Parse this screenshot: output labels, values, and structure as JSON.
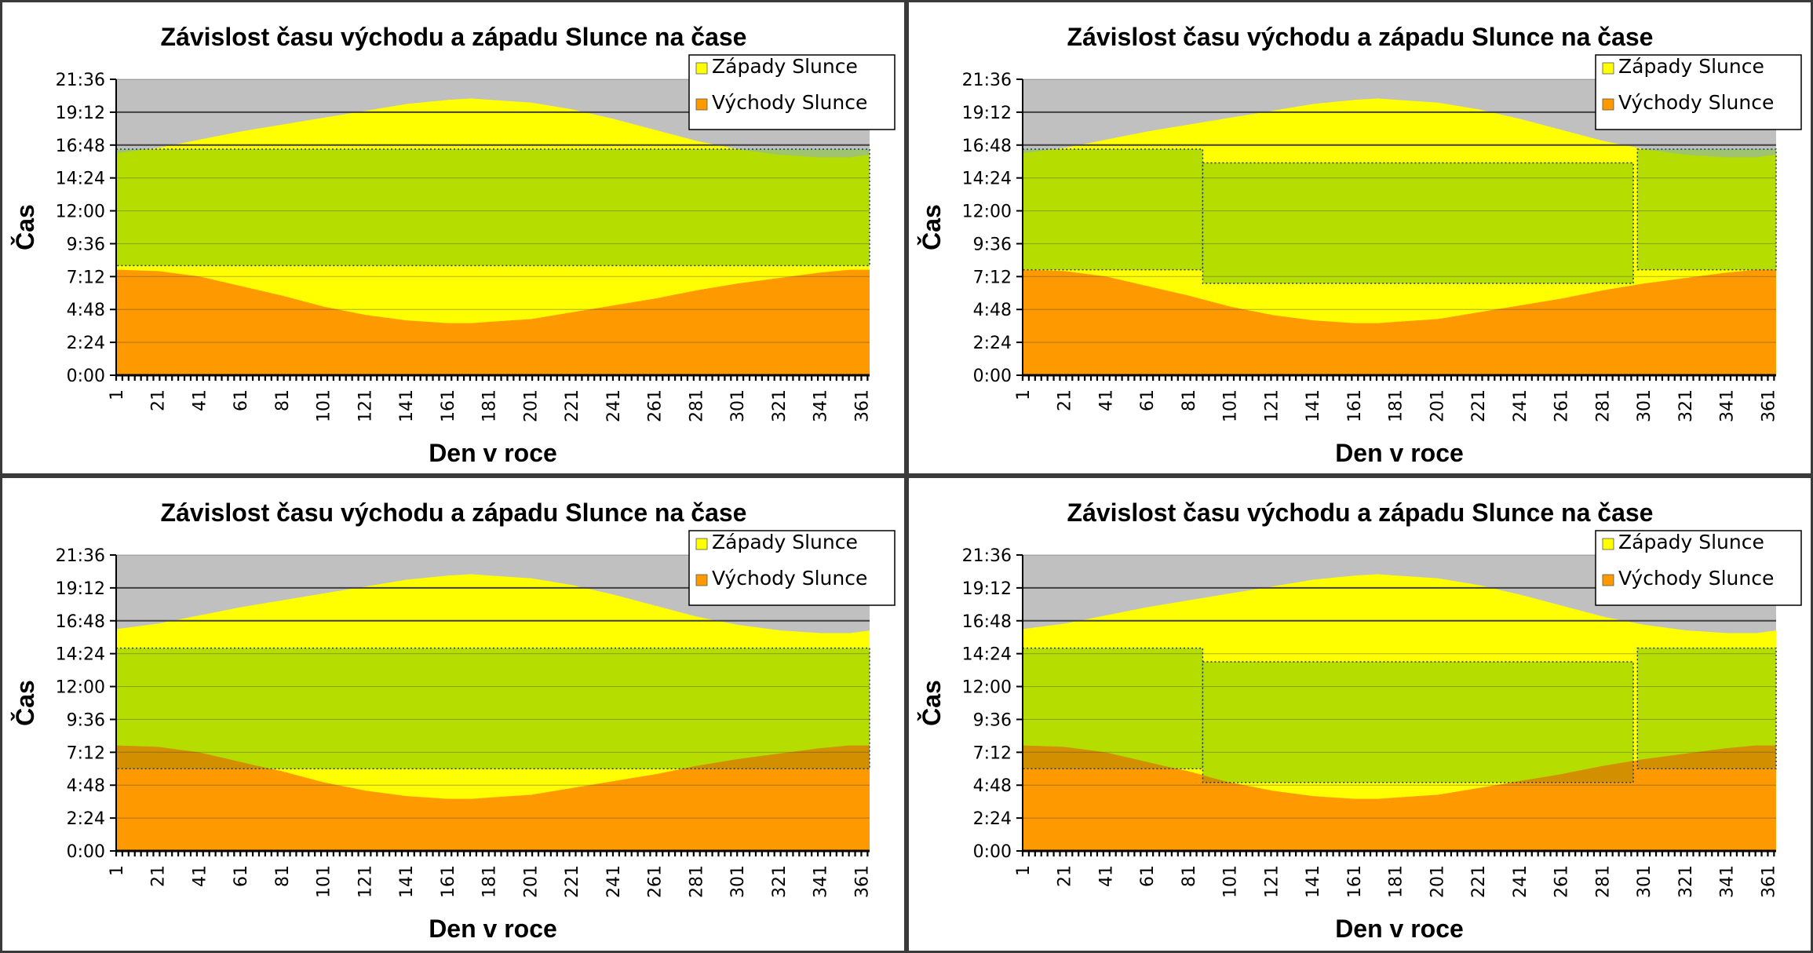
{
  "colors": {
    "night": "#c0c0c0",
    "sunset_area": "#ffff00",
    "sunrise_area": "#ff9900",
    "overlay": "#b6dd00",
    "overlay_dark": "#d28f00",
    "overlay_upper": "#9fc36f",
    "gridline": "#404040",
    "overlay_edge": "#1f3a7a"
  },
  "chart_data": [
    {
      "type": "area",
      "title": "Závislost času východu a západu Slunce na čase",
      "xlabel": "Den v roce",
      "ylabel": "Čas",
      "x_ticks": [
        "1",
        "21",
        "41",
        "61",
        "81",
        "101",
        "121",
        "141",
        "161",
        "181",
        "201",
        "221",
        "241",
        "261",
        "281",
        "301",
        "321",
        "341",
        "361"
      ],
      "y_ticks": [
        "0:00",
        "2:24",
        "4:48",
        "7:12",
        "9:36",
        "12:00",
        "14:24",
        "16:48",
        "19:12",
        "21:36"
      ],
      "ylim_hours": [
        0,
        21.6
      ],
      "xlim_days": [
        1,
        365
      ],
      "grid": "horizontal major gridlines",
      "legend_position": "top-right",
      "legend": [
        "Západy Slunce",
        "Východy Slunce"
      ],
      "series": [
        {
          "name": "Západy Slunce",
          "x": [
            1,
            21,
            41,
            61,
            81,
            101,
            121,
            141,
            161,
            172,
            181,
            201,
            221,
            241,
            261,
            281,
            301,
            321,
            341,
            355,
            365
          ],
          "y_hours": [
            16.2,
            16.6,
            17.2,
            17.8,
            18.3,
            18.8,
            19.3,
            19.8,
            20.1,
            20.2,
            20.1,
            19.9,
            19.4,
            18.7,
            17.9,
            17.1,
            16.5,
            16.1,
            15.9,
            15.9,
            16.1
          ]
        },
        {
          "name": "Východy Slunce",
          "x": [
            1,
            21,
            41,
            61,
            81,
            101,
            121,
            141,
            161,
            172,
            181,
            201,
            221,
            241,
            261,
            281,
            301,
            321,
            341,
            355,
            365
          ],
          "y_hours": [
            7.7,
            7.6,
            7.2,
            6.5,
            5.8,
            5.0,
            4.4,
            4.0,
            3.8,
            3.8,
            3.9,
            4.1,
            4.6,
            5.1,
            5.6,
            6.2,
            6.7,
            7.1,
            7.5,
            7.7,
            7.7
          ]
        }
      ],
      "overlay_periods": [
        {
          "from_day": 1,
          "to_day": 365,
          "start_hours": 8.0,
          "end_hours": 16.5
        }
      ]
    },
    {
      "type": "area",
      "title": "Závislost času východu a západu Slunce na čase",
      "xlabel": "Den v roce",
      "ylabel": "Čas",
      "x_ticks": [
        "1",
        "21",
        "41",
        "61",
        "81",
        "101",
        "121",
        "141",
        "161",
        "181",
        "201",
        "221",
        "241",
        "261",
        "281",
        "301",
        "321",
        "341",
        "361"
      ],
      "y_ticks": [
        "0:00",
        "2:24",
        "4:48",
        "7:12",
        "9:36",
        "12:00",
        "14:24",
        "16:48",
        "19:12",
        "21:36"
      ],
      "ylim_hours": [
        0,
        21.6
      ],
      "xlim_days": [
        1,
        365
      ],
      "grid": "horizontal major gridlines",
      "legend_position": "top-right",
      "legend": [
        "Západy Slunce",
        "Východy Slunce"
      ],
      "series": [
        {
          "name": "Západy Slunce",
          "x": [
            1,
            21,
            41,
            61,
            81,
            101,
            121,
            141,
            161,
            172,
            181,
            201,
            221,
            241,
            261,
            281,
            301,
            321,
            341,
            355,
            365
          ],
          "y_hours": [
            16.2,
            16.6,
            17.2,
            17.8,
            18.3,
            18.8,
            19.3,
            19.8,
            20.1,
            20.2,
            20.1,
            19.9,
            19.4,
            18.7,
            17.9,
            17.1,
            16.5,
            16.1,
            15.9,
            15.9,
            16.1
          ]
        },
        {
          "name": "Východy Slunce",
          "x": [
            1,
            21,
            41,
            61,
            81,
            101,
            121,
            141,
            161,
            172,
            181,
            201,
            221,
            241,
            261,
            281,
            301,
            321,
            341,
            355,
            365
          ],
          "y_hours": [
            7.7,
            7.6,
            7.2,
            6.5,
            5.8,
            5.0,
            4.4,
            4.0,
            3.8,
            3.8,
            3.9,
            4.1,
            4.6,
            5.1,
            5.6,
            6.2,
            6.7,
            7.1,
            7.5,
            7.7,
            7.7
          ]
        }
      ],
      "overlay_periods": [
        {
          "from_day": 1,
          "to_day": 88,
          "start_hours": 7.7,
          "end_hours": 16.5
        },
        {
          "from_day": 88,
          "to_day": 296,
          "start_hours": 6.7,
          "end_hours": 15.5
        },
        {
          "from_day": 298,
          "to_day": 365,
          "start_hours": 7.7,
          "end_hours": 16.5
        }
      ]
    },
    {
      "type": "area",
      "title": "Závislost času východu a západu Slunce na čase",
      "xlabel": "Den v roce",
      "ylabel": "Čas",
      "x_ticks": [
        "1",
        "21",
        "41",
        "61",
        "81",
        "101",
        "121",
        "141",
        "161",
        "181",
        "201",
        "221",
        "241",
        "261",
        "281",
        "301",
        "321",
        "341",
        "361"
      ],
      "y_ticks": [
        "0:00",
        "2:24",
        "4:48",
        "7:12",
        "9:36",
        "12:00",
        "14:24",
        "16:48",
        "19:12",
        "21:36"
      ],
      "ylim_hours": [
        0,
        21.6
      ],
      "xlim_days": [
        1,
        365
      ],
      "grid": "horizontal major gridlines",
      "legend_position": "top-right",
      "legend": [
        "Západy Slunce",
        "Východy Slunce"
      ],
      "series": [
        {
          "name": "Západy Slunce",
          "x": [
            1,
            21,
            41,
            61,
            81,
            101,
            121,
            141,
            161,
            172,
            181,
            201,
            221,
            241,
            261,
            281,
            301,
            321,
            341,
            355,
            365
          ],
          "y_hours": [
            16.2,
            16.6,
            17.2,
            17.8,
            18.3,
            18.8,
            19.3,
            19.8,
            20.1,
            20.2,
            20.1,
            19.9,
            19.4,
            18.7,
            17.9,
            17.1,
            16.5,
            16.1,
            15.9,
            15.9,
            16.1
          ]
        },
        {
          "name": "Východy Slunce",
          "x": [
            1,
            21,
            41,
            61,
            81,
            101,
            121,
            141,
            161,
            172,
            181,
            201,
            221,
            241,
            261,
            281,
            301,
            321,
            341,
            355,
            365
          ],
          "y_hours": [
            7.7,
            7.6,
            7.2,
            6.5,
            5.8,
            5.0,
            4.4,
            4.0,
            3.8,
            3.8,
            3.9,
            4.1,
            4.6,
            5.1,
            5.6,
            6.2,
            6.7,
            7.1,
            7.5,
            7.7,
            7.7
          ]
        }
      ],
      "overlay_periods": [
        {
          "from_day": 1,
          "to_day": 365,
          "start_hours": 6.0,
          "end_hours": 14.8
        }
      ]
    },
    {
      "type": "area",
      "title": "Závislost času východu a západu Slunce na čase",
      "xlabel": "Den v roce",
      "ylabel": "Čas",
      "x_ticks": [
        "1",
        "21",
        "41",
        "61",
        "81",
        "101",
        "121",
        "141",
        "161",
        "181",
        "201",
        "221",
        "241",
        "261",
        "281",
        "301",
        "321",
        "341",
        "361"
      ],
      "y_ticks": [
        "0:00",
        "2:24",
        "4:48",
        "7:12",
        "9:36",
        "12:00",
        "14:24",
        "16:48",
        "19:12",
        "21:36"
      ],
      "ylim_hours": [
        0,
        21.6
      ],
      "xlim_days": [
        1,
        365
      ],
      "grid": "horizontal major gridlines",
      "legend_position": "top-right",
      "legend": [
        "Západy Slunce",
        "Východy Slunce"
      ],
      "series": [
        {
          "name": "Západy Slunce",
          "x": [
            1,
            21,
            41,
            61,
            81,
            101,
            121,
            141,
            161,
            172,
            181,
            201,
            221,
            241,
            261,
            281,
            301,
            321,
            341,
            355,
            365
          ],
          "y_hours": [
            16.2,
            16.6,
            17.2,
            17.8,
            18.3,
            18.8,
            19.3,
            19.8,
            20.1,
            20.2,
            20.1,
            19.9,
            19.4,
            18.7,
            17.9,
            17.1,
            16.5,
            16.1,
            15.9,
            15.9,
            16.1
          ]
        },
        {
          "name": "Východy Slunce",
          "x": [
            1,
            21,
            41,
            61,
            81,
            101,
            121,
            141,
            161,
            172,
            181,
            201,
            221,
            241,
            261,
            281,
            301,
            321,
            341,
            355,
            365
          ],
          "y_hours": [
            7.7,
            7.6,
            7.2,
            6.5,
            5.8,
            5.0,
            4.4,
            4.0,
            3.8,
            3.8,
            3.9,
            4.1,
            4.6,
            5.1,
            5.6,
            6.2,
            6.7,
            7.1,
            7.5,
            7.7,
            7.7
          ]
        }
      ],
      "overlay_periods": [
        {
          "from_day": 1,
          "to_day": 88,
          "start_hours": 6.0,
          "end_hours": 14.8
        },
        {
          "from_day": 88,
          "to_day": 296,
          "start_hours": 5.0,
          "end_hours": 13.8
        },
        {
          "from_day": 298,
          "to_day": 365,
          "start_hours": 6.0,
          "end_hours": 14.8
        }
      ]
    }
  ]
}
